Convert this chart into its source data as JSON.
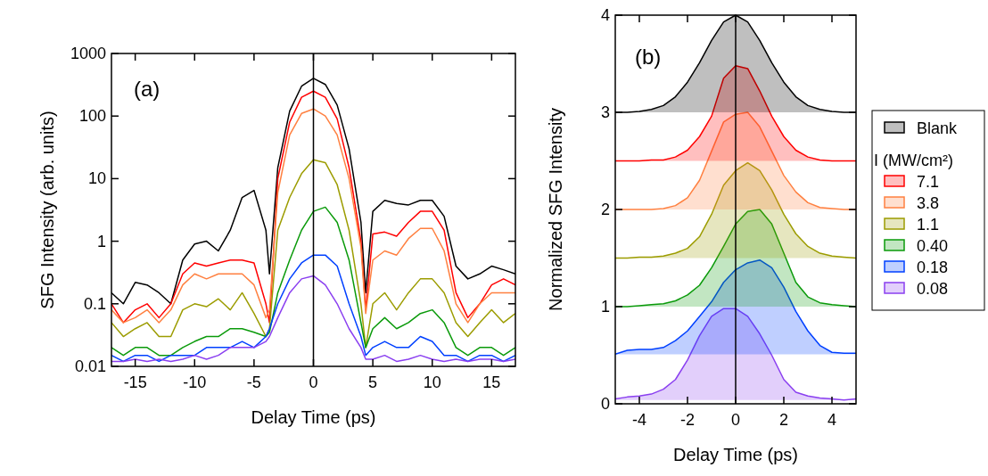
{
  "chart_data": [
    {
      "type": "line",
      "xlabel": "Delay Time (ps)",
      "ylabel": "SFG Intensity (arb. units)",
      "annotations": [
        "(a)"
      ],
      "log": "y",
      "grid": false,
      "legend": false,
      "x": [
        -17,
        -16,
        -15,
        -14,
        -13,
        -12,
        -11,
        -10,
        -9,
        -8,
        -7,
        -6,
        -5,
        -4,
        -3.7,
        -3,
        -2,
        -1,
        0,
        1,
        2,
        3,
        4,
        4.4,
        5,
        6,
        7,
        8,
        9,
        10,
        11,
        12,
        13,
        14,
        15,
        16,
        17
      ],
      "xlim": [
        -17,
        17
      ],
      "xticks": [
        -15,
        -10,
        -5,
        0,
        5,
        10,
        15
      ],
      "ylim": [
        0.01,
        1000
      ],
      "yticks": [
        0.01,
        0.1,
        1,
        10,
        100,
        1000
      ],
      "ref_lines": [
        {
          "axis": "x",
          "value": 0,
          "color": "#000000"
        }
      ],
      "series": [
        {
          "color": "#000000",
          "values": [
            0.15,
            0.1,
            0.22,
            0.2,
            0.15,
            0.1,
            0.5,
            0.9,
            1.0,
            0.7,
            1.5,
            5,
            6.5,
            1.5,
            0.3,
            15,
            120,
            300,
            400,
            320,
            150,
            30,
            2,
            0.15,
            3,
            4.5,
            4,
            3.8,
            4.5,
            4.5,
            2.5,
            0.4,
            0.25,
            0.3,
            0.4,
            0.35,
            0.3
          ]
        },
        {
          "color": "#ff0000",
          "values": [
            0.1,
            0.05,
            0.08,
            0.1,
            0.06,
            0.1,
            0.3,
            0.45,
            0.4,
            0.45,
            0.5,
            0.5,
            0.45,
            0.1,
            0.05,
            10,
            80,
            200,
            250,
            200,
            90,
            15,
            1,
            0.08,
            1.3,
            1.4,
            1.2,
            2,
            3,
            3,
            1.5,
            0.15,
            0.06,
            0.1,
            0.2,
            0.25,
            0.2
          ]
        },
        {
          "color": "#ff8040",
          "values": [
            0.08,
            0.05,
            0.06,
            0.08,
            0.05,
            0.08,
            0.2,
            0.3,
            0.25,
            0.3,
            0.3,
            0.3,
            0.2,
            0.06,
            0.08,
            6,
            50,
            110,
            130,
            100,
            50,
            10,
            0.8,
            0.07,
            0.5,
            0.7,
            0.6,
            1.1,
            1.6,
            1.6,
            0.7,
            0.1,
            0.05,
            0.1,
            0.15,
            0.15,
            0.15
          ]
        },
        {
          "color": "#9c9c00",
          "values": [
            0.05,
            0.03,
            0.04,
            0.05,
            0.03,
            0.03,
            0.08,
            0.1,
            0.09,
            0.12,
            0.08,
            0.15,
            0.07,
            0.03,
            0.04,
            1.5,
            5,
            12,
            20,
            18,
            8,
            1.5,
            0.1,
            0.02,
            0.1,
            0.15,
            0.08,
            0.15,
            0.25,
            0.25,
            0.15,
            0.05,
            0.03,
            0.05,
            0.08,
            0.05,
            0.07
          ]
        },
        {
          "color": "#0a9a0a",
          "values": [
            0.02,
            0.015,
            0.02,
            0.02,
            0.015,
            0.015,
            0.02,
            0.025,
            0.03,
            0.03,
            0.04,
            0.04,
            0.035,
            0.03,
            0.035,
            0.15,
            0.5,
            1.5,
            3,
            3.5,
            2,
            0.5,
            0.05,
            0.02,
            0.04,
            0.06,
            0.04,
            0.05,
            0.07,
            0.08,
            0.05,
            0.02,
            0.015,
            0.02,
            0.02,
            0.015,
            0.02
          ]
        },
        {
          "color": "#0040ff",
          "values": [
            0.015,
            0.012,
            0.015,
            0.015,
            0.012,
            0.015,
            0.015,
            0.015,
            0.02,
            0.02,
            0.02,
            0.025,
            0.02,
            0.03,
            0.04,
            0.1,
            0.25,
            0.45,
            0.6,
            0.6,
            0.4,
            0.1,
            0.03,
            0.015,
            0.02,
            0.025,
            0.02,
            0.02,
            0.03,
            0.025,
            0.015,
            0.015,
            0.012,
            0.015,
            0.015,
            0.012,
            0.015
          ]
        },
        {
          "color": "#8a3ff0",
          "values": [
            0.012,
            0.012,
            0.013,
            0.012,
            0.013,
            0.012,
            0.013,
            0.015,
            0.013,
            0.015,
            0.02,
            0.02,
            0.02,
            0.025,
            0.03,
            0.06,
            0.15,
            0.25,
            0.28,
            0.2,
            0.1,
            0.04,
            0.02,
            0.013,
            0.013,
            0.015,
            0.012,
            0.013,
            0.015,
            0.013,
            0.012,
            0.013,
            0.012,
            0.013,
            0.013,
            0.012,
            0.013
          ]
        }
      ]
    },
    {
      "type": "area",
      "xlabel": "Delay Time (ps)",
      "ylabel": "Normalized SFG Intensity",
      "annotations": [
        "(b)"
      ],
      "legend": "right",
      "legend_title": "I (MW/cm²)",
      "grid": false,
      "x": [
        -5,
        -4.5,
        -4,
        -3.5,
        -3,
        -2.5,
        -2,
        -1.5,
        -1,
        -0.5,
        0,
        0.5,
        1,
        1.5,
        2,
        2.5,
        3,
        3.5,
        4,
        4.5,
        5
      ],
      "xlim": [
        -5,
        5
      ],
      "xticks": [
        -4,
        -2,
        0,
        2,
        4
      ],
      "ylim": [
        0,
        4
      ],
      "yticks": [
        0,
        1,
        2,
        3,
        4
      ],
      "ref_lines": [
        {
          "axis": "x",
          "value": 0,
          "color": "#000000"
        }
      ],
      "series": [
        {
          "name": "Blank",
          "color": "#000000",
          "values": [
            3,
            3,
            3.01,
            3.03,
            3.07,
            3.16,
            3.31,
            3.51,
            3.74,
            3.93,
            4,
            3.93,
            3.74,
            3.51,
            3.31,
            3.16,
            3.07,
            3.03,
            3.01,
            3,
            3
          ]
        },
        {
          "name": "7.1",
          "color": "#ff0000",
          "values": [
            2.5,
            2.5,
            2.5,
            2.51,
            2.51,
            2.54,
            2.61,
            2.75,
            2.96,
            3.35,
            3.48,
            3.45,
            3.22,
            2.96,
            2.75,
            2.61,
            2.54,
            2.51,
            2.5,
            2.5,
            2.5
          ]
        },
        {
          "name": "3.8",
          "color": "#ff8040",
          "values": [
            2,
            2,
            2,
            2,
            2.01,
            2.04,
            2.12,
            2.3,
            2.6,
            2.9,
            2.98,
            3.0,
            2.85,
            2.6,
            2.35,
            2.18,
            2.07,
            2.02,
            2.01,
            2,
            2
          ]
        },
        {
          "name": "1.1",
          "color": "#9c9c00",
          "values": [
            1.5,
            1.5,
            1.51,
            1.51,
            1.52,
            1.55,
            1.6,
            1.72,
            1.95,
            2.25,
            2.4,
            2.48,
            2.4,
            2.2,
            1.95,
            1.75,
            1.62,
            1.55,
            1.52,
            1.51,
            1.5
          ]
        },
        {
          "name": "0.40",
          "color": "#0a9a0a",
          "values": [
            1,
            1,
            1.01,
            1.02,
            1.03,
            1.06,
            1.12,
            1.22,
            1.4,
            1.62,
            1.85,
            1.98,
            2.0,
            1.85,
            1.55,
            1.25,
            1.1,
            1.04,
            1.02,
            1.01,
            1
          ]
        },
        {
          "name": "0.18",
          "color": "#0040ff",
          "values": [
            0.51,
            0.55,
            0.56,
            0.56,
            0.58,
            0.65,
            0.75,
            0.9,
            1.05,
            1.25,
            1.38,
            1.45,
            1.48,
            1.4,
            1.2,
            0.95,
            0.75,
            0.6,
            0.53,
            0.52,
            0.52
          ]
        },
        {
          "name": "0.08",
          "color": "#8a3ff0",
          "values": [
            0.05,
            0.07,
            0.08,
            0.1,
            0.15,
            0.25,
            0.45,
            0.7,
            0.9,
            0.98,
            0.98,
            0.9,
            0.72,
            0.5,
            0.25,
            0.12,
            0.08,
            0.06,
            0.05,
            0.04,
            0.05
          ]
        }
      ]
    }
  ]
}
